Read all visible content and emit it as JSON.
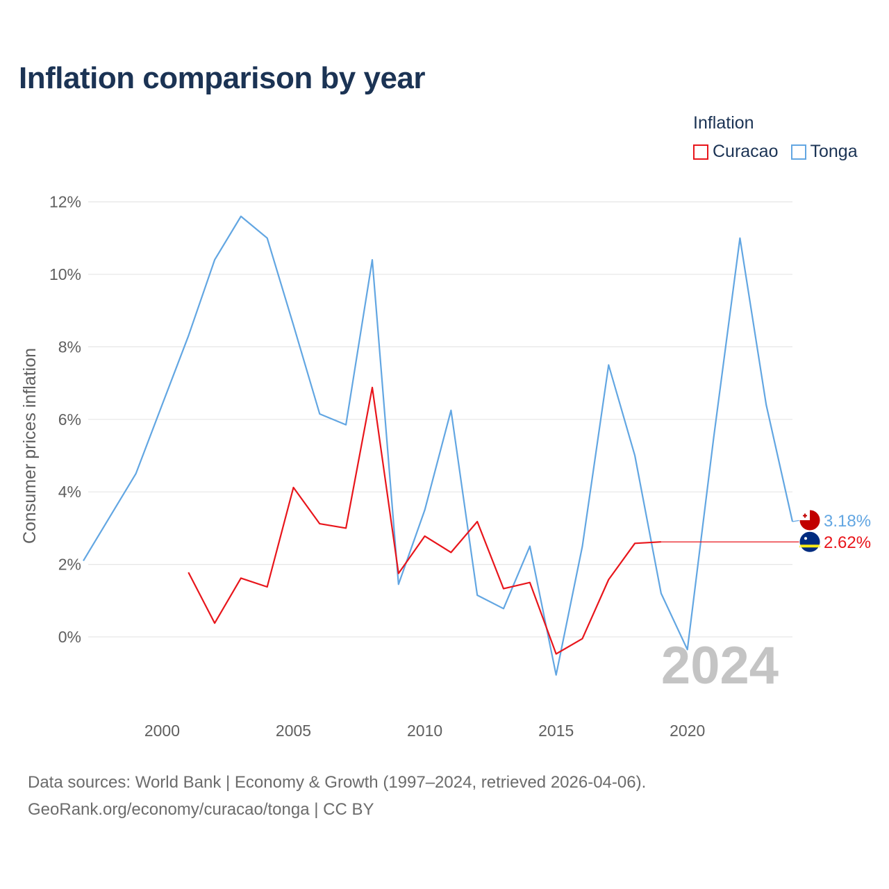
{
  "page": {
    "title": "Inflation comparison by year",
    "source_line1": "Data sources: World Bank | Economy & Growth (1997–2024, retrieved 2026-04-06).",
    "source_line2": "GeoRank.org/economy/curacao/tonga | CC BY"
  },
  "legend": {
    "title": "Inflation",
    "items": [
      {
        "label": "Curacao",
        "color": "#e8151b"
      },
      {
        "label": "Tonga",
        "color": "#62a6e2"
      }
    ]
  },
  "chart_data": {
    "type": "line",
    "title": "Inflation comparison by year",
    "xlabel": "",
    "ylabel": "Consumer prices inflation",
    "xlim": [
      1997,
      2024
    ],
    "ylim": [
      -1.8,
      12.5
    ],
    "x_ticks": [
      2000,
      2005,
      2010,
      2015,
      2020
    ],
    "y_ticks": [
      0,
      2,
      4,
      6,
      8,
      10,
      12
    ],
    "y_tick_labels": [
      "0%",
      "2%",
      "4%",
      "6%",
      "8%",
      "10%",
      "12%"
    ],
    "grid": true,
    "current_year": "2024",
    "series": [
      {
        "name": "Tonga",
        "color": "#62a6e2",
        "end_label": "3.18%",
        "flag": "tonga-flag-icon",
        "x": [
          1997,
          1998,
          1999,
          2000,
          2001,
          2002,
          2003,
          2004,
          2005,
          2006,
          2007,
          2008,
          2009,
          2010,
          2011,
          2012,
          2013,
          2014,
          2015,
          2016,
          2017,
          2018,
          2019,
          2020,
          2021,
          2022,
          2023,
          2024
        ],
        "y": [
          2.1,
          3.3,
          4.5,
          6.4,
          8.3,
          10.4,
          11.6,
          11.0,
          8.6,
          6.15,
          5.85,
          10.4,
          1.45,
          3.5,
          6.25,
          1.15,
          0.78,
          2.5,
          -1.05,
          2.5,
          7.5,
          5.0,
          1.2,
          -0.35,
          5.5,
          11.0,
          6.4,
          3.18
        ]
      },
      {
        "name": "Curacao",
        "color": "#e8151b",
        "end_label": "2.62%",
        "flag": "curacao-flag-icon",
        "x": [
          2001,
          2002,
          2003,
          2004,
          2005,
          2006,
          2007,
          2008,
          2009,
          2010,
          2011,
          2012,
          2013,
          2014,
          2015,
          2016,
          2017,
          2018,
          2019
        ],
        "y": [
          1.78,
          0.38,
          1.62,
          1.38,
          4.12,
          3.12,
          3.0,
          6.88,
          1.75,
          2.78,
          2.33,
          3.18,
          1.33,
          1.5,
          -0.47,
          -0.05,
          1.58,
          2.58,
          2.62
        ]
      }
    ]
  }
}
